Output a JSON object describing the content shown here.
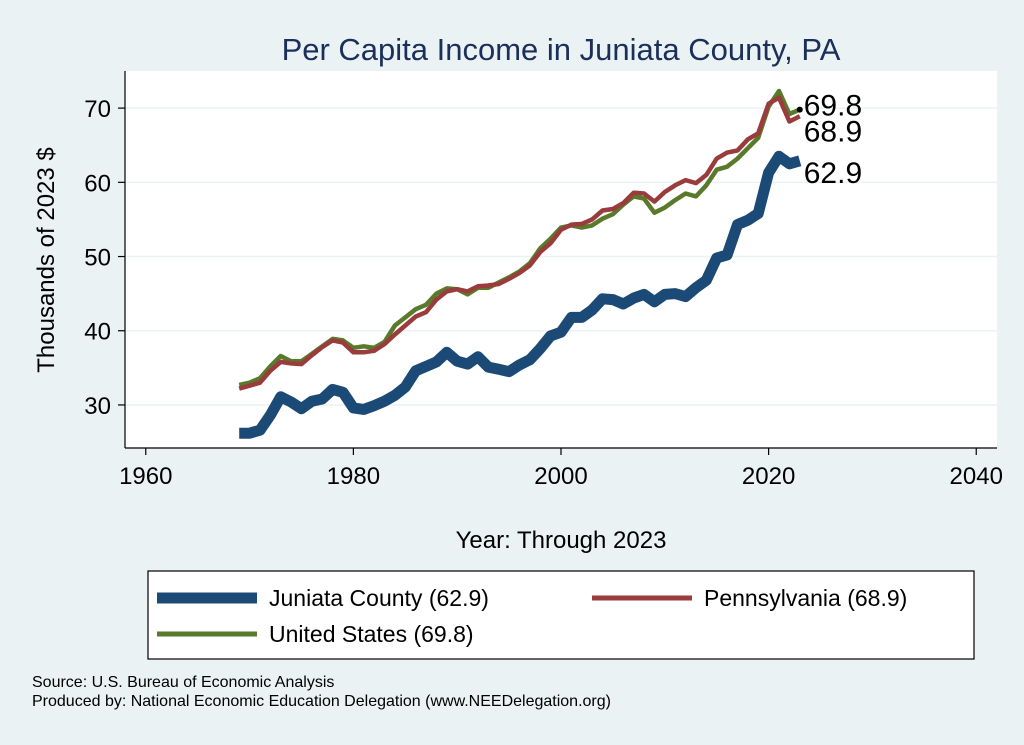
{
  "chart_data": {
    "type": "line",
    "title": "Per Capita Income in Juniata County, PA",
    "xlabel": "Year: Through 2023",
    "ylabel": "Thousands of 2023 $",
    "xlim": [
      1958,
      2042
    ],
    "ylim": [
      24.2,
      75
    ],
    "xticks": [
      1960,
      1980,
      2000,
      2020,
      2040
    ],
    "yticks": [
      30,
      40,
      50,
      60,
      70
    ],
    "grid": "horizontal",
    "legend_position": "bottom",
    "series": [
      {
        "name": "Juniata County (62.9)",
        "color": "#1c4a77",
        "end_label": "62.9",
        "x": [
          1969,
          1970,
          1971,
          1972,
          1973,
          1974,
          1975,
          1976,
          1977,
          1978,
          1979,
          1980,
          1981,
          1982,
          1983,
          1984,
          1985,
          1986,
          1987,
          1988,
          1989,
          1990,
          1991,
          1992,
          1993,
          1994,
          1995,
          1996,
          1997,
          1998,
          1999,
          2000,
          2001,
          2002,
          2003,
          2004,
          2005,
          2006,
          2007,
          2008,
          2009,
          2010,
          2011,
          2012,
          2013,
          2014,
          2015,
          2016,
          2017,
          2018,
          2019,
          2020,
          2021,
          2022,
          2023
        ],
        "values": [
          26.2,
          26.2,
          26.6,
          28.6,
          31.1,
          30.4,
          29.5,
          30.5,
          30.8,
          32.1,
          31.7,
          29.6,
          29.4,
          29.9,
          30.5,
          31.3,
          32.4,
          34.6,
          35.2,
          35.8,
          37.1,
          35.9,
          35.5,
          36.5,
          35.1,
          34.8,
          34.5,
          35.4,
          36.1,
          37.6,
          39.3,
          39.8,
          41.8,
          41.8,
          42.8,
          44.3,
          44.2,
          43.6,
          44.4,
          44.9,
          43.9,
          44.9,
          45.0,
          44.6,
          45.8,
          46.8,
          49.8,
          50.2,
          54.3,
          54.9,
          55.8,
          61.3,
          63.5,
          62.5,
          62.9
        ]
      },
      {
        "name": "Pennsylvania (68.9)",
        "color": "#9a3b3c",
        "end_label": "68.9",
        "x": [
          1969,
          1970,
          1971,
          1972,
          1973,
          1974,
          1975,
          1976,
          1977,
          1978,
          1979,
          1980,
          1981,
          1982,
          1983,
          1984,
          1985,
          1986,
          1987,
          1988,
          1989,
          1990,
          1991,
          1992,
          1993,
          1994,
          1995,
          1996,
          1997,
          1998,
          1999,
          2000,
          2001,
          2002,
          2003,
          2004,
          2005,
          2006,
          2007,
          2008,
          2009,
          2010,
          2011,
          2012,
          2013,
          2014,
          2015,
          2016,
          2017,
          2018,
          2019,
          2020,
          2021,
          2022,
          2023
        ],
        "values": [
          32.2,
          32.6,
          33.0,
          34.6,
          35.8,
          35.6,
          35.5,
          36.7,
          37.8,
          38.7,
          38.4,
          37.1,
          37.1,
          37.3,
          38.2,
          39.5,
          40.7,
          41.9,
          42.5,
          44.2,
          45.3,
          45.6,
          45.3,
          46.0,
          46.1,
          46.3,
          47.0,
          47.8,
          48.8,
          50.6,
          51.8,
          53.6,
          54.3,
          54.4,
          55.0,
          56.2,
          56.4,
          57.2,
          58.6,
          58.5,
          57.4,
          58.7,
          59.6,
          60.3,
          59.9,
          61.0,
          63.2,
          64.0,
          64.3,
          65.8,
          66.6,
          70.6,
          71.4,
          68.2,
          68.9
        ]
      },
      {
        "name": "United States (69.8)",
        "color": "#5a7a2b",
        "end_label": "69.8",
        "x": [
          1969,
          1970,
          1971,
          1972,
          1973,
          1974,
          1975,
          1976,
          1977,
          1978,
          1979,
          1980,
          1981,
          1982,
          1983,
          1984,
          1985,
          1986,
          1987,
          1988,
          1989,
          1990,
          1991,
          1992,
          1993,
          1994,
          1995,
          1996,
          1997,
          1998,
          1999,
          2000,
          2001,
          2002,
          2003,
          2004,
          2005,
          2006,
          2007,
          2008,
          2009,
          2010,
          2011,
          2012,
          2013,
          2014,
          2015,
          2016,
          2017,
          2018,
          2019,
          2020,
          2021,
          2022,
          2023
        ],
        "values": [
          32.7,
          33.0,
          33.6,
          35.2,
          36.6,
          35.9,
          35.9,
          36.9,
          37.9,
          38.9,
          38.7,
          37.7,
          37.9,
          37.7,
          38.5,
          40.7,
          41.8,
          42.9,
          43.5,
          45.0,
          45.7,
          45.6,
          44.9,
          45.8,
          45.8,
          46.5,
          47.2,
          48.0,
          49.1,
          51.1,
          52.4,
          53.9,
          54.2,
          53.9,
          54.2,
          55.1,
          55.7,
          57.0,
          58.1,
          57.8,
          55.9,
          56.6,
          57.6,
          58.5,
          58.1,
          59.6,
          61.7,
          62.1,
          63.2,
          64.6,
          66.0,
          70.2,
          72.3,
          69.2,
          69.8
        ]
      }
    ]
  },
  "notes": {
    "source": "Source: U.S. Bureau of Economic Analysis",
    "produced_by": "Produced by: National Economic Education Delegation (www.NEEDelegation.org)"
  }
}
